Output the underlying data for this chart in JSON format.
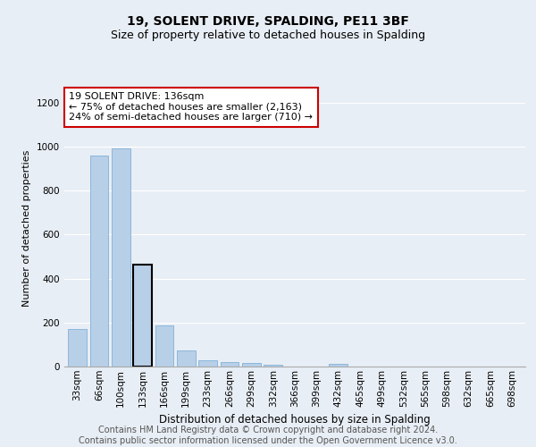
{
  "title1": "19, SOLENT DRIVE, SPALDING, PE11 3BF",
  "title2": "Size of property relative to detached houses in Spalding",
  "xlabel": "Distribution of detached houses by size in Spalding",
  "ylabel": "Number of detached properties",
  "categories": [
    "33sqm",
    "66sqm",
    "100sqm",
    "133sqm",
    "166sqm",
    "199sqm",
    "233sqm",
    "266sqm",
    "299sqm",
    "332sqm",
    "366sqm",
    "399sqm",
    "432sqm",
    "465sqm",
    "499sqm",
    "532sqm",
    "565sqm",
    "598sqm",
    "632sqm",
    "665sqm",
    "698sqm"
  ],
  "values": [
    170,
    960,
    990,
    465,
    185,
    75,
    28,
    20,
    15,
    10,
    0,
    0,
    12,
    0,
    0,
    0,
    0,
    0,
    0,
    0,
    0
  ],
  "bar_color": "#b8cfe8",
  "bar_edge_color": "#6fa8d4",
  "highlight_bar_index": 3,
  "highlight_bar_edge_color": "#000000",
  "annotation_text": "19 SOLENT DRIVE: 136sqm\n← 75% of detached houses are smaller (2,163)\n24% of semi-detached houses are larger (710) →",
  "annotation_box_color": "#ffffff",
  "annotation_box_edge_color": "#cc0000",
  "ylim": [
    0,
    1260
  ],
  "yticks": [
    0,
    200,
    400,
    600,
    800,
    1000,
    1200
  ],
  "footer_text": "Contains HM Land Registry data © Crown copyright and database right 2024.\nContains public sector information licensed under the Open Government Licence v3.0.",
  "background_color": "#e8eef5",
  "plot_background_color": "#e8eef5",
  "title1_fontsize": 10,
  "title2_fontsize": 9,
  "xlabel_fontsize": 8.5,
  "ylabel_fontsize": 8,
  "tick_fontsize": 7.5,
  "footer_fontsize": 7,
  "annotation_fontsize": 8
}
